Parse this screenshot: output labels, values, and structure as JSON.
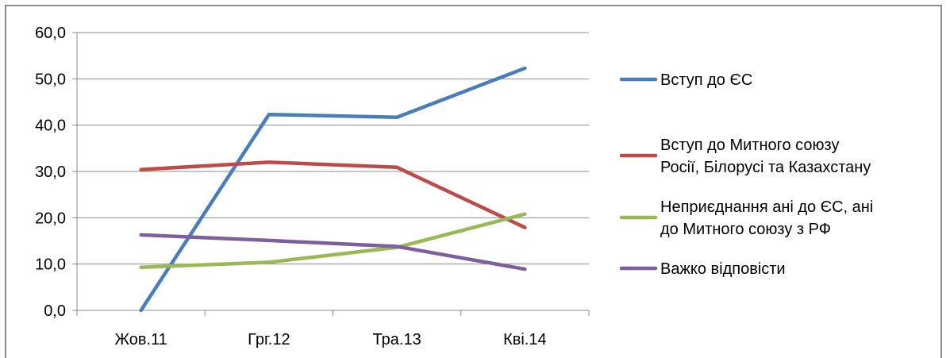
{
  "chart_data": {
    "type": "line",
    "categories": [
      "Жов.11",
      "Грг.12",
      "Тра.13",
      "Кві.14"
    ],
    "ylim": [
      0,
      60
    ],
    "y_ticks": [
      "0,0",
      "10,0",
      "20,0",
      "30,0",
      "40,0",
      "50,0",
      "60,0"
    ],
    "grid": true,
    "legend_placement": "right",
    "series": [
      {
        "name": "Вступ до ЄС",
        "name_lines": [
          "Вступ до ЄС"
        ],
        "color": "#4a7ebb",
        "values": [
          0.0,
          42.3,
          41.7,
          52.3
        ]
      },
      {
        "name": "Вступ до Митного союзу Росії, Білорусі та Казахстану",
        "name_lines": [
          "Вступ до Митного союзу",
          "Росії, Білорусі та Казахстану"
        ],
        "color": "#be4b48",
        "values": [
          30.4,
          32.0,
          30.9,
          17.9
        ]
      },
      {
        "name": "Неприєднання ані до ЄС, ані до Митного союзу з РФ",
        "name_lines": [
          "Неприєднання ані до ЄС, ані",
          "до Митного союзу з РФ"
        ],
        "color": "#98b954",
        "values": [
          9.3,
          10.4,
          13.6,
          20.8
        ]
      },
      {
        "name": "Важко відповісти",
        "name_lines": [
          "Важко відповісти"
        ],
        "color": "#7d5fa0",
        "values": [
          16.3,
          15.1,
          13.8,
          8.9
        ]
      }
    ]
  }
}
